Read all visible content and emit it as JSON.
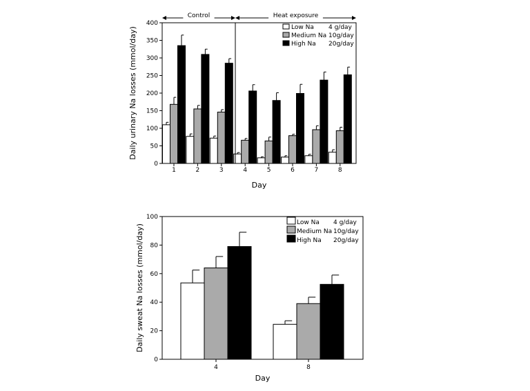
{
  "chart_data": [
    {
      "type": "bar",
      "ylabel": "Daily urinary Na losses (mmol/day)",
      "xlabel": "Day",
      "ylim": [
        0,
        400
      ],
      "yticks": [
        0,
        50,
        100,
        150,
        200,
        250,
        300,
        350,
        400
      ],
      "categories": [
        "1",
        "2",
        "3",
        "4",
        "5",
        "6",
        "7",
        "8"
      ],
      "series": [
        {
          "name": "Low Na",
          "dose": "4 g/day",
          "color": "#ffffff",
          "values": [
            110,
            77,
            72,
            27,
            16,
            18,
            22,
            32
          ],
          "errors": [
            7,
            7,
            6,
            4,
            3,
            4,
            4,
            7
          ]
        },
        {
          "name": "Medium Na",
          "dose": "10g/day",
          "color": "#aaaaaa",
          "values": [
            168,
            155,
            146,
            66,
            64,
            79,
            96,
            93
          ],
          "errors": [
            20,
            10,
            7,
            5,
            11,
            4,
            11,
            10
          ]
        },
        {
          "name": "High Na",
          "dose": "20g/day",
          "color": "#000000",
          "values": [
            335,
            310,
            285,
            206,
            179,
            199,
            237,
            252
          ],
          "errors": [
            30,
            15,
            13,
            18,
            22,
            26,
            23,
            22
          ]
        }
      ],
      "sections": [
        {
          "label": "Control",
          "from": "1",
          "to": "3"
        },
        {
          "label": "Heat exposure",
          "from": "4",
          "to": "8"
        }
      ],
      "legend_position": "top-right"
    },
    {
      "type": "bar",
      "ylabel": "Daily sweat Na losses (mmol/day)",
      "xlabel": "Day",
      "ylim": [
        0,
        100
      ],
      "yticks": [
        0,
        20,
        40,
        60,
        80,
        100
      ],
      "categories": [
        "4",
        "8"
      ],
      "series": [
        {
          "name": "Low Na",
          "dose": "4 g/day",
          "color": "#ffffff",
          "values": [
            53.5,
            24.5
          ],
          "errors": [
            9,
            2.5
          ]
        },
        {
          "name": "Medium Na",
          "dose": "10g/day",
          "color": "#aaaaaa",
          "values": [
            64,
            39
          ],
          "errors": [
            8,
            4.5
          ]
        },
        {
          "name": "High Na",
          "dose": "20g/day",
          "color": "#000000",
          "values": [
            79,
            52.5
          ],
          "errors": [
            10,
            6.5
          ]
        }
      ],
      "legend_position": "top-right"
    }
  ]
}
